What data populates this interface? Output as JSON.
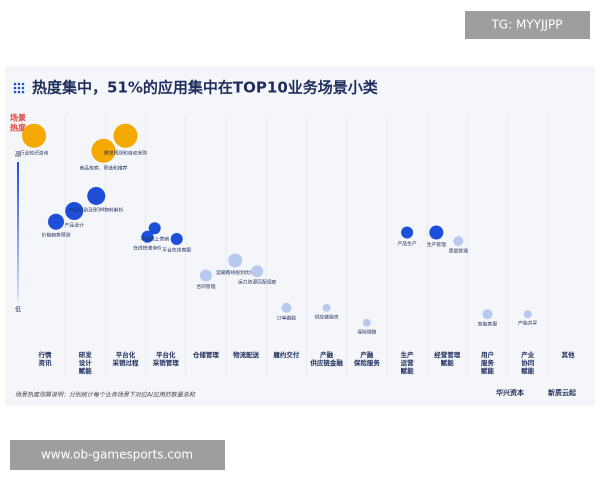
{
  "chart_data": {
    "type": "bubble",
    "title": "热度集中，51%的应用集中在TOP10业务场景小类",
    "y_label": [
      "场景",
      "热度"
    ],
    "high_label": "高",
    "low_label": "低",
    "ylim": [
      0,
      100
    ],
    "categories": [
      [
        "行情",
        "资讯"
      ],
      [
        "研发",
        "设计",
        "赋能"
      ],
      [
        "平台化",
        "采销过程"
      ],
      [
        "平台化",
        "采销管理"
      ],
      [
        "仓储管理"
      ],
      [
        "物流配送"
      ],
      [
        "履约交付"
      ],
      [
        "产融",
        "供应链金融"
      ],
      [
        "产融",
        "保险服务"
      ],
      [
        "生产",
        "运营",
        "赋能"
      ],
      [
        "经营管理",
        "赋能"
      ],
      [
        "用户",
        "服务",
        "赋能"
      ],
      [
        "产业",
        "协同",
        "赋能"
      ],
      [
        "其他"
      ]
    ],
    "points": [
      {
        "label": "行业知识咨询",
        "category": 0,
        "heat": 95,
        "size": 12,
        "color": "#f5a800"
      },
      {
        "label": "价格趋势预测",
        "category": 0,
        "heat": 55,
        "size": 8,
        "color": "#1d4fd8"
      },
      {
        "label": "产品设计",
        "category": 1,
        "heat": 60,
        "size": 9,
        "color": "#1d4fd8"
      },
      {
        "label": "产品识别及BOM物料解析",
        "category": 1,
        "heat": 67,
        "size": 9,
        "color": "#1d4fd8"
      },
      {
        "label": "商品检索、筛选和推荐",
        "category": 2,
        "heat": 88,
        "size": 12,
        "color": "#f5a800"
      },
      {
        "label": "需求预测和自动采购",
        "category": 2,
        "heat": 95,
        "size": 12,
        "color": "#f5a800"
      },
      {
        "label": "在线快速询价",
        "category": 2,
        "heat": 48,
        "size": 6,
        "color": "#1d4fd8"
      },
      {
        "label": "平台线上营销",
        "category": 3,
        "heat": 52,
        "size": 6,
        "color": "#1d4fd8"
      },
      {
        "label": "平台在线客服",
        "category": 3,
        "heat": 47,
        "size": 6,
        "color": "#1d4fd8"
      },
      {
        "label": "合同管理",
        "category": 4,
        "heat": 30,
        "size": 6,
        "color": "#b7c9ee"
      },
      {
        "label": "运输路线规划优化",
        "category": 5,
        "heat": 37,
        "size": 7,
        "color": "#b7c9ee"
      },
      {
        "label": "运力资源匹配调度",
        "category": 5,
        "heat": 32,
        "size": 6,
        "color": "#b7c9ee"
      },
      {
        "label": "订单跟踪",
        "category": 6,
        "heat": 15,
        "size": 5,
        "color": "#b7c9ee"
      },
      {
        "label": "供应链融资",
        "category": 7,
        "heat": 15,
        "size": 4,
        "color": "#b7c9ee"
      },
      {
        "label": "保险理赔",
        "category": 8,
        "heat": 8,
        "size": 4,
        "color": "#b7c9ee"
      },
      {
        "label": "产品生产",
        "category": 9,
        "heat": 50,
        "size": 6,
        "color": "#1d4fd8"
      },
      {
        "label": "生产管理",
        "category": 10,
        "heat": 50,
        "size": 7,
        "color": "#1d4fd8"
      },
      {
        "label": "质量管理",
        "category": 10,
        "heat": 46,
        "size": 5,
        "color": "#b7c9ee"
      },
      {
        "label": "智能客服",
        "category": 11,
        "heat": 12,
        "size": 5,
        "color": "#b7c9ee"
      },
      {
        "label": "产能共享",
        "category": 12,
        "heat": 12,
        "size": 4,
        "color": "#b7c9ee"
      }
    ],
    "footnote": "场景热度测算说明：分别统计每个业务场景下对应AI应用的数量总和",
    "logos": [
      "华兴资本",
      "新质云起"
    ]
  },
  "watermarks": [
    "TG: MYYJJPP",
    "www.ob-gamesports.com"
  ]
}
